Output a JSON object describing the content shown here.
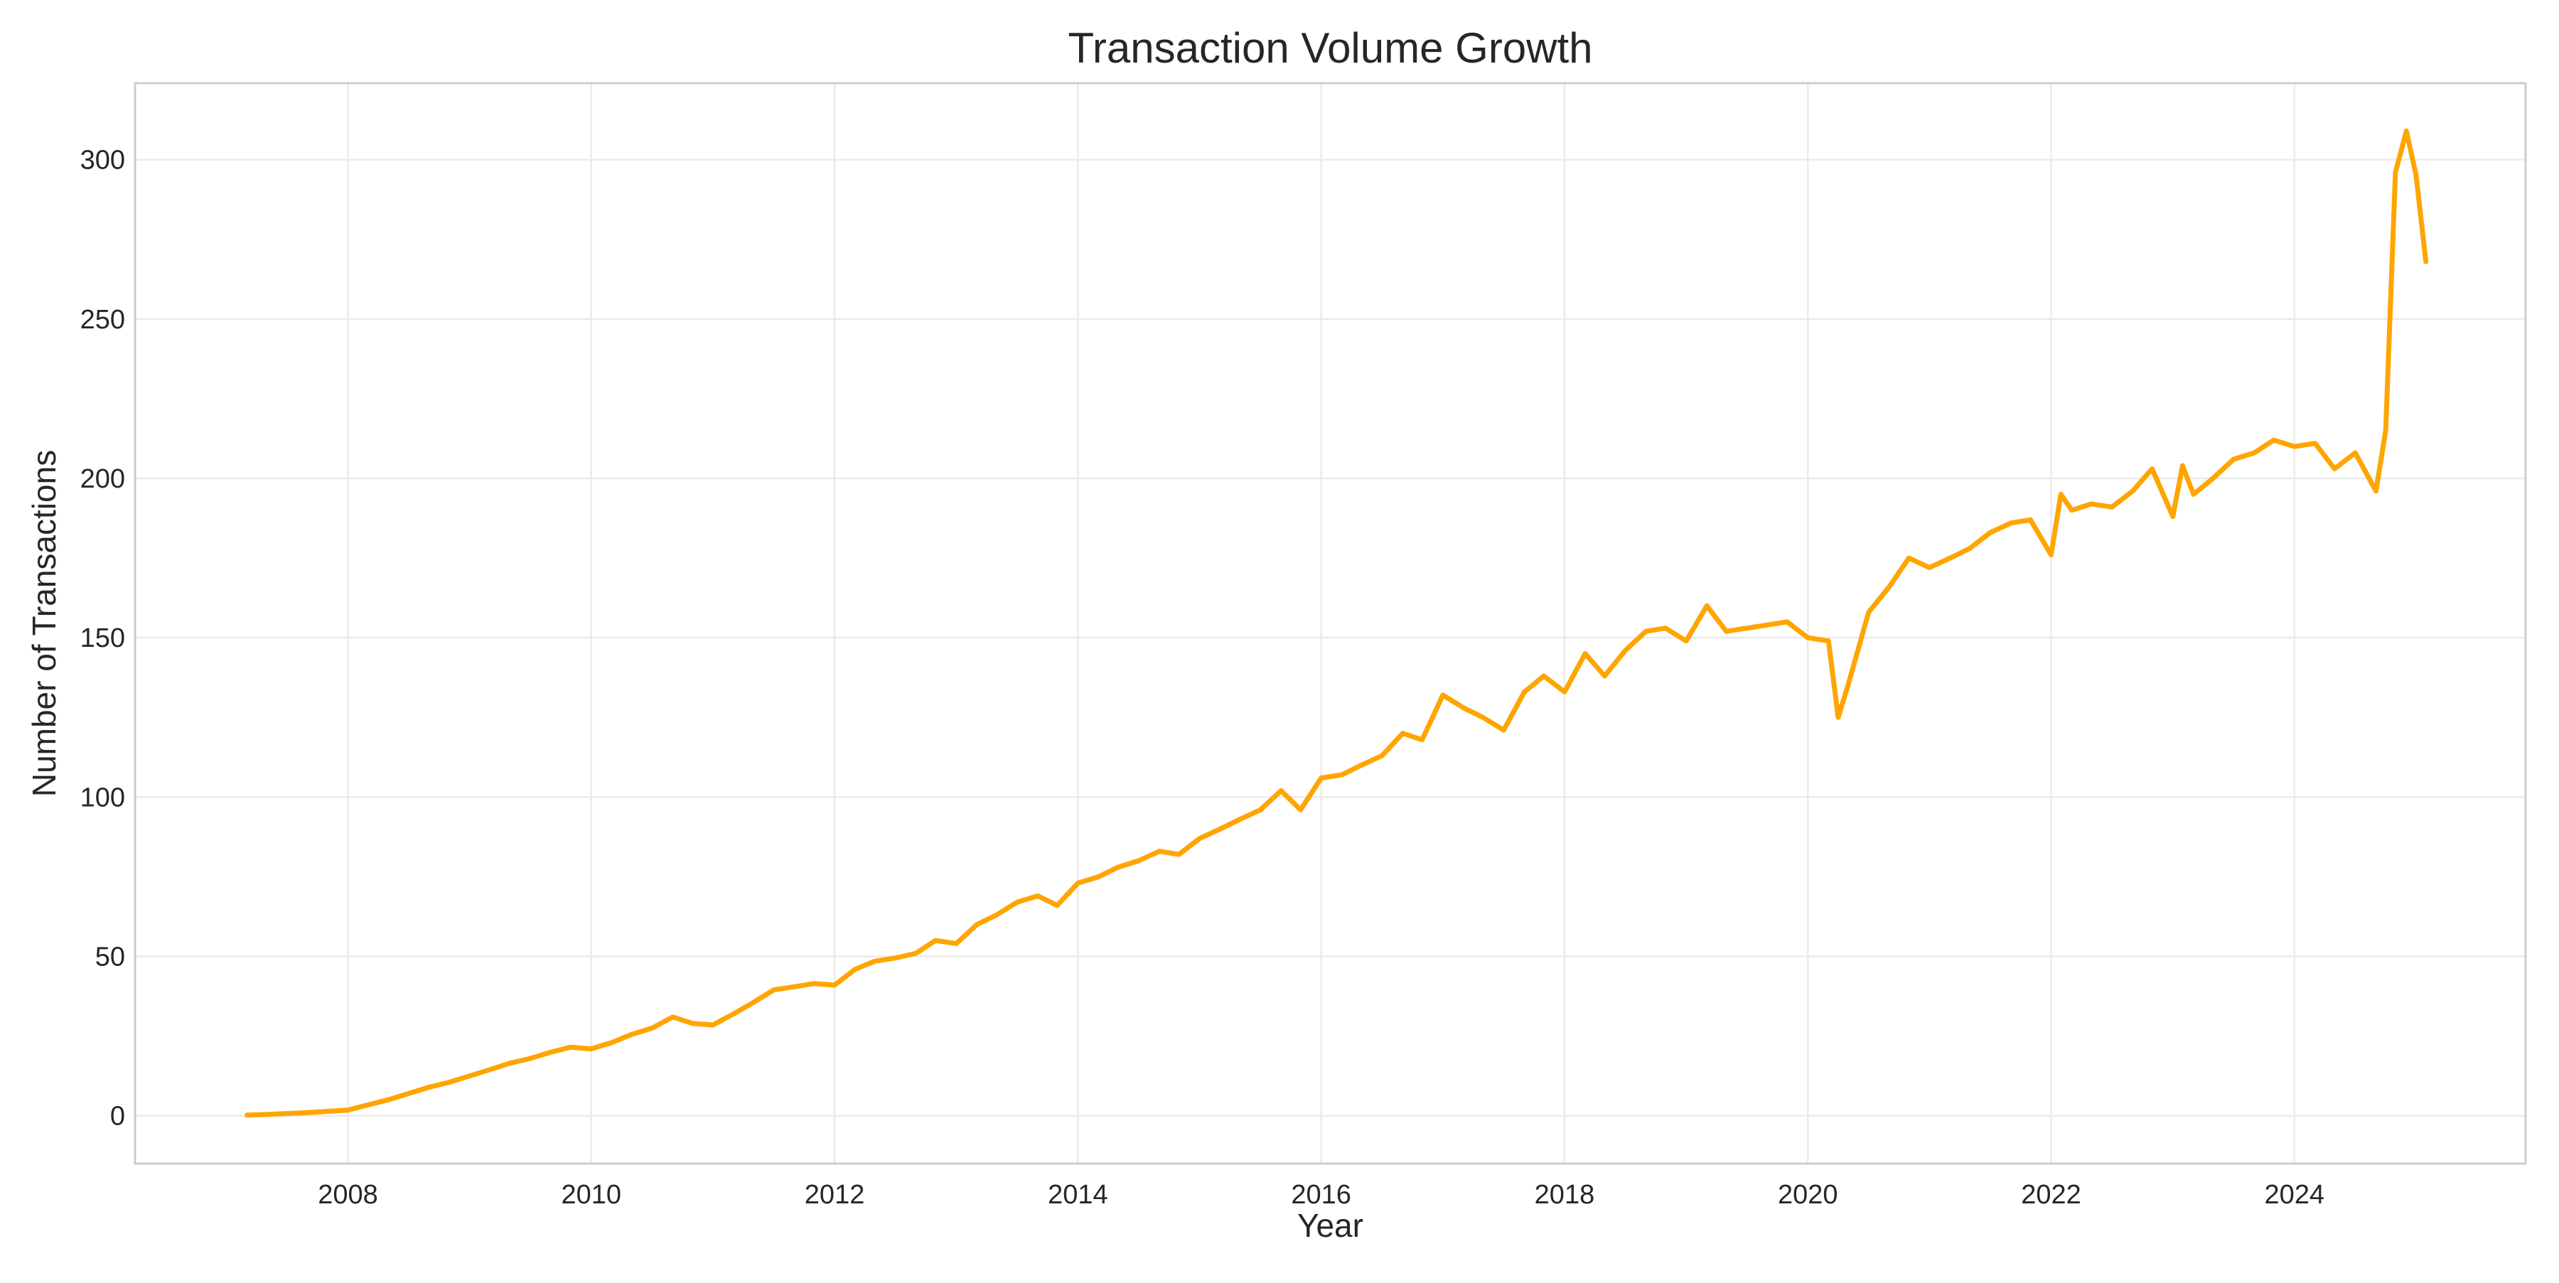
{
  "chart_data": {
    "type": "line",
    "title": "Transaction Volume Growth",
    "xlabel": "Year",
    "ylabel": "Number of Transactions",
    "xlim": [
      2006.25,
      2025.9
    ],
    "ylim": [
      -15,
      324
    ],
    "xticks": [
      2008,
      2010,
      2012,
      2014,
      2016,
      2018,
      2020,
      2022,
      2024
    ],
    "yticks": [
      0,
      50,
      100,
      150,
      200,
      250,
      300
    ],
    "grid": true,
    "line_color": "#FFA500",
    "series": [
      {
        "x": [
          2007.17,
          2007.33,
          2007.5,
          2007.67,
          2007.83,
          2008.0,
          2008.17,
          2008.33,
          2008.5,
          2008.67,
          2008.83,
          2009.0,
          2009.17,
          2009.33,
          2009.5,
          2009.67,
          2009.83,
          2010.0,
          2010.17,
          2010.33,
          2010.5,
          2010.67,
          2010.83,
          2011.0,
          2011.17,
          2011.33,
          2011.5,
          2011.67,
          2011.83,
          2012.0,
          2012.17,
          2012.33,
          2012.5,
          2012.67,
          2012.83,
          2013.0,
          2013.17,
          2013.33,
          2013.5,
          2013.67,
          2013.83,
          2014.0,
          2014.17,
          2014.33,
          2014.5,
          2014.67,
          2014.83,
          2015.0,
          2015.17,
          2015.33,
          2015.5,
          2015.67,
          2015.83,
          2016.0,
          2016.17,
          2016.33,
          2016.5,
          2016.67,
          2016.83,
          2017.0,
          2017.17,
          2017.33,
          2017.5,
          2017.67,
          2017.83,
          2018.0,
          2018.17,
          2018.33,
          2018.5,
          2018.67,
          2018.83,
          2019.0,
          2019.17,
          2019.33,
          2019.5,
          2019.67,
          2019.83,
          2020.0,
          2020.17,
          2020.25,
          2020.33,
          2020.5,
          2020.67,
          2020.83,
          2021.0,
          2021.17,
          2021.33,
          2021.5,
          2021.67,
          2021.83,
          2022.0,
          2022.08,
          2022.17,
          2022.33,
          2022.5,
          2022.67,
          2022.83,
          2023.0,
          2023.08,
          2023.17,
          2023.33,
          2023.5,
          2023.67,
          2023.83,
          2024.0,
          2024.17,
          2024.33,
          2024.5,
          2024.67,
          2024.75,
          2024.83,
          2024.92,
          2025.0,
          2025.08
        ],
        "y": [
          0.2,
          0.4,
          0.7,
          1.0,
          1.4,
          1.8,
          3.5,
          5.0,
          7.0,
          9.0,
          10.5,
          12.5,
          14.5,
          16.5,
          18.0,
          20.0,
          21.5,
          21.0,
          23.0,
          25.5,
          27.5,
          31.0,
          29.0,
          28.5,
          32.0,
          35.5,
          39.5,
          40.5,
          41.5,
          41.0,
          46.0,
          48.5,
          49.5,
          51.0,
          55.0,
          54.0,
          60.0,
          63.0,
          67.0,
          69.0,
          66.0,
          73.0,
          75.0,
          78.0,
          80.0,
          83.0,
          82.0,
          87.0,
          90.0,
          93.0,
          96.0,
          102.0,
          96.0,
          106.0,
          107.0,
          110.0,
          113.0,
          120.0,
          118.0,
          132.0,
          128.0,
          125.0,
          121.0,
          133.0,
          138.0,
          133.0,
          145.0,
          138.0,
          146.0,
          152.0,
          153.0,
          149.0,
          160.0,
          152.0,
          153.0,
          154.0,
          155.0,
          150.0,
          149.0,
          125.0,
          135.0,
          158.0,
          166.0,
          175.0,
          172.0,
          175.0,
          178.0,
          183.0,
          186.0,
          187.0,
          176.0,
          195.0,
          190.0,
          192.0,
          191.0,
          196.0,
          203.0,
          188.0,
          204.0,
          195.0,
          200.0,
          206.0,
          208.0,
          212.0,
          210.0,
          211.0,
          203.0,
          208.0,
          196.0,
          215.0,
          296.0,
          309.0,
          295.0,
          268.0
        ]
      }
    ]
  }
}
